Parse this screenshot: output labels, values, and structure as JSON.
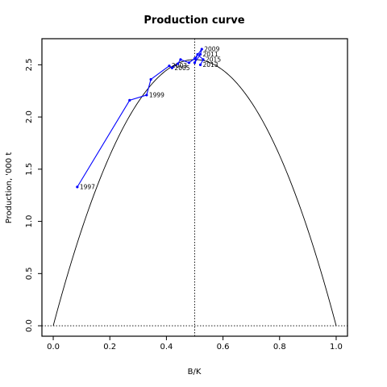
{
  "chart_data": {
    "type": "line",
    "title": "Production curve",
    "xlabel": "B/K",
    "ylabel": "Production, '000 t",
    "xlim": [
      -0.04,
      1.04
    ],
    "ylim": [
      -0.1,
      2.75
    ],
    "xticks": [
      "0.0",
      "0.2",
      "0.4",
      "0.6",
      "0.8",
      "1.0"
    ],
    "xtick_values": [
      0,
      0.2,
      0.4,
      0.6,
      0.8,
      1.0
    ],
    "yticks": [
      "0.0",
      "0.5",
      "1.0",
      "1.5",
      "2.0",
      "2.5"
    ],
    "ytick_values": [
      0,
      0.5,
      1.0,
      1.5,
      2.0,
      2.5
    ],
    "grid": false,
    "curve": {
      "form": "parabola",
      "peak_x": 0.5,
      "peak_y": 2.55,
      "x_range": [
        0,
        1
      ],
      "color": "#000000"
    },
    "reference_lines": {
      "vertical_x": 0.5,
      "horizontal_y": 0,
      "style": "dotted"
    },
    "series": [
      {
        "color": "#0000ff",
        "points": [
          {
            "x": 0.085,
            "y": 1.33,
            "label": "1997"
          },
          {
            "x": 0.27,
            "y": 2.16,
            "label": ""
          },
          {
            "x": 0.33,
            "y": 2.21,
            "label": "1999"
          },
          {
            "x": 0.345,
            "y": 2.36,
            "label": ""
          },
          {
            "x": 0.41,
            "y": 2.49,
            "label": "2003"
          },
          {
            "x": 0.42,
            "y": 2.47,
            "label": "2005"
          },
          {
            "x": 0.44,
            "y": 2.51,
            "label": ""
          },
          {
            "x": 0.45,
            "y": 2.55,
            "label": ""
          },
          {
            "x": 0.48,
            "y": 2.52,
            "label": ""
          },
          {
            "x": 0.5,
            "y": 2.56,
            "label": ""
          },
          {
            "x": 0.525,
            "y": 2.65,
            "label": "2009"
          },
          {
            "x": 0.52,
            "y": 2.6,
            "label": "2011"
          },
          {
            "x": 0.5,
            "y": 2.52,
            "label": ""
          },
          {
            "x": 0.51,
            "y": 2.6,
            "label": ""
          },
          {
            "x": 0.53,
            "y": 2.55,
            "label": "2015"
          },
          {
            "x": 0.52,
            "y": 2.5,
            "label": "2013"
          }
        ]
      }
    ]
  }
}
